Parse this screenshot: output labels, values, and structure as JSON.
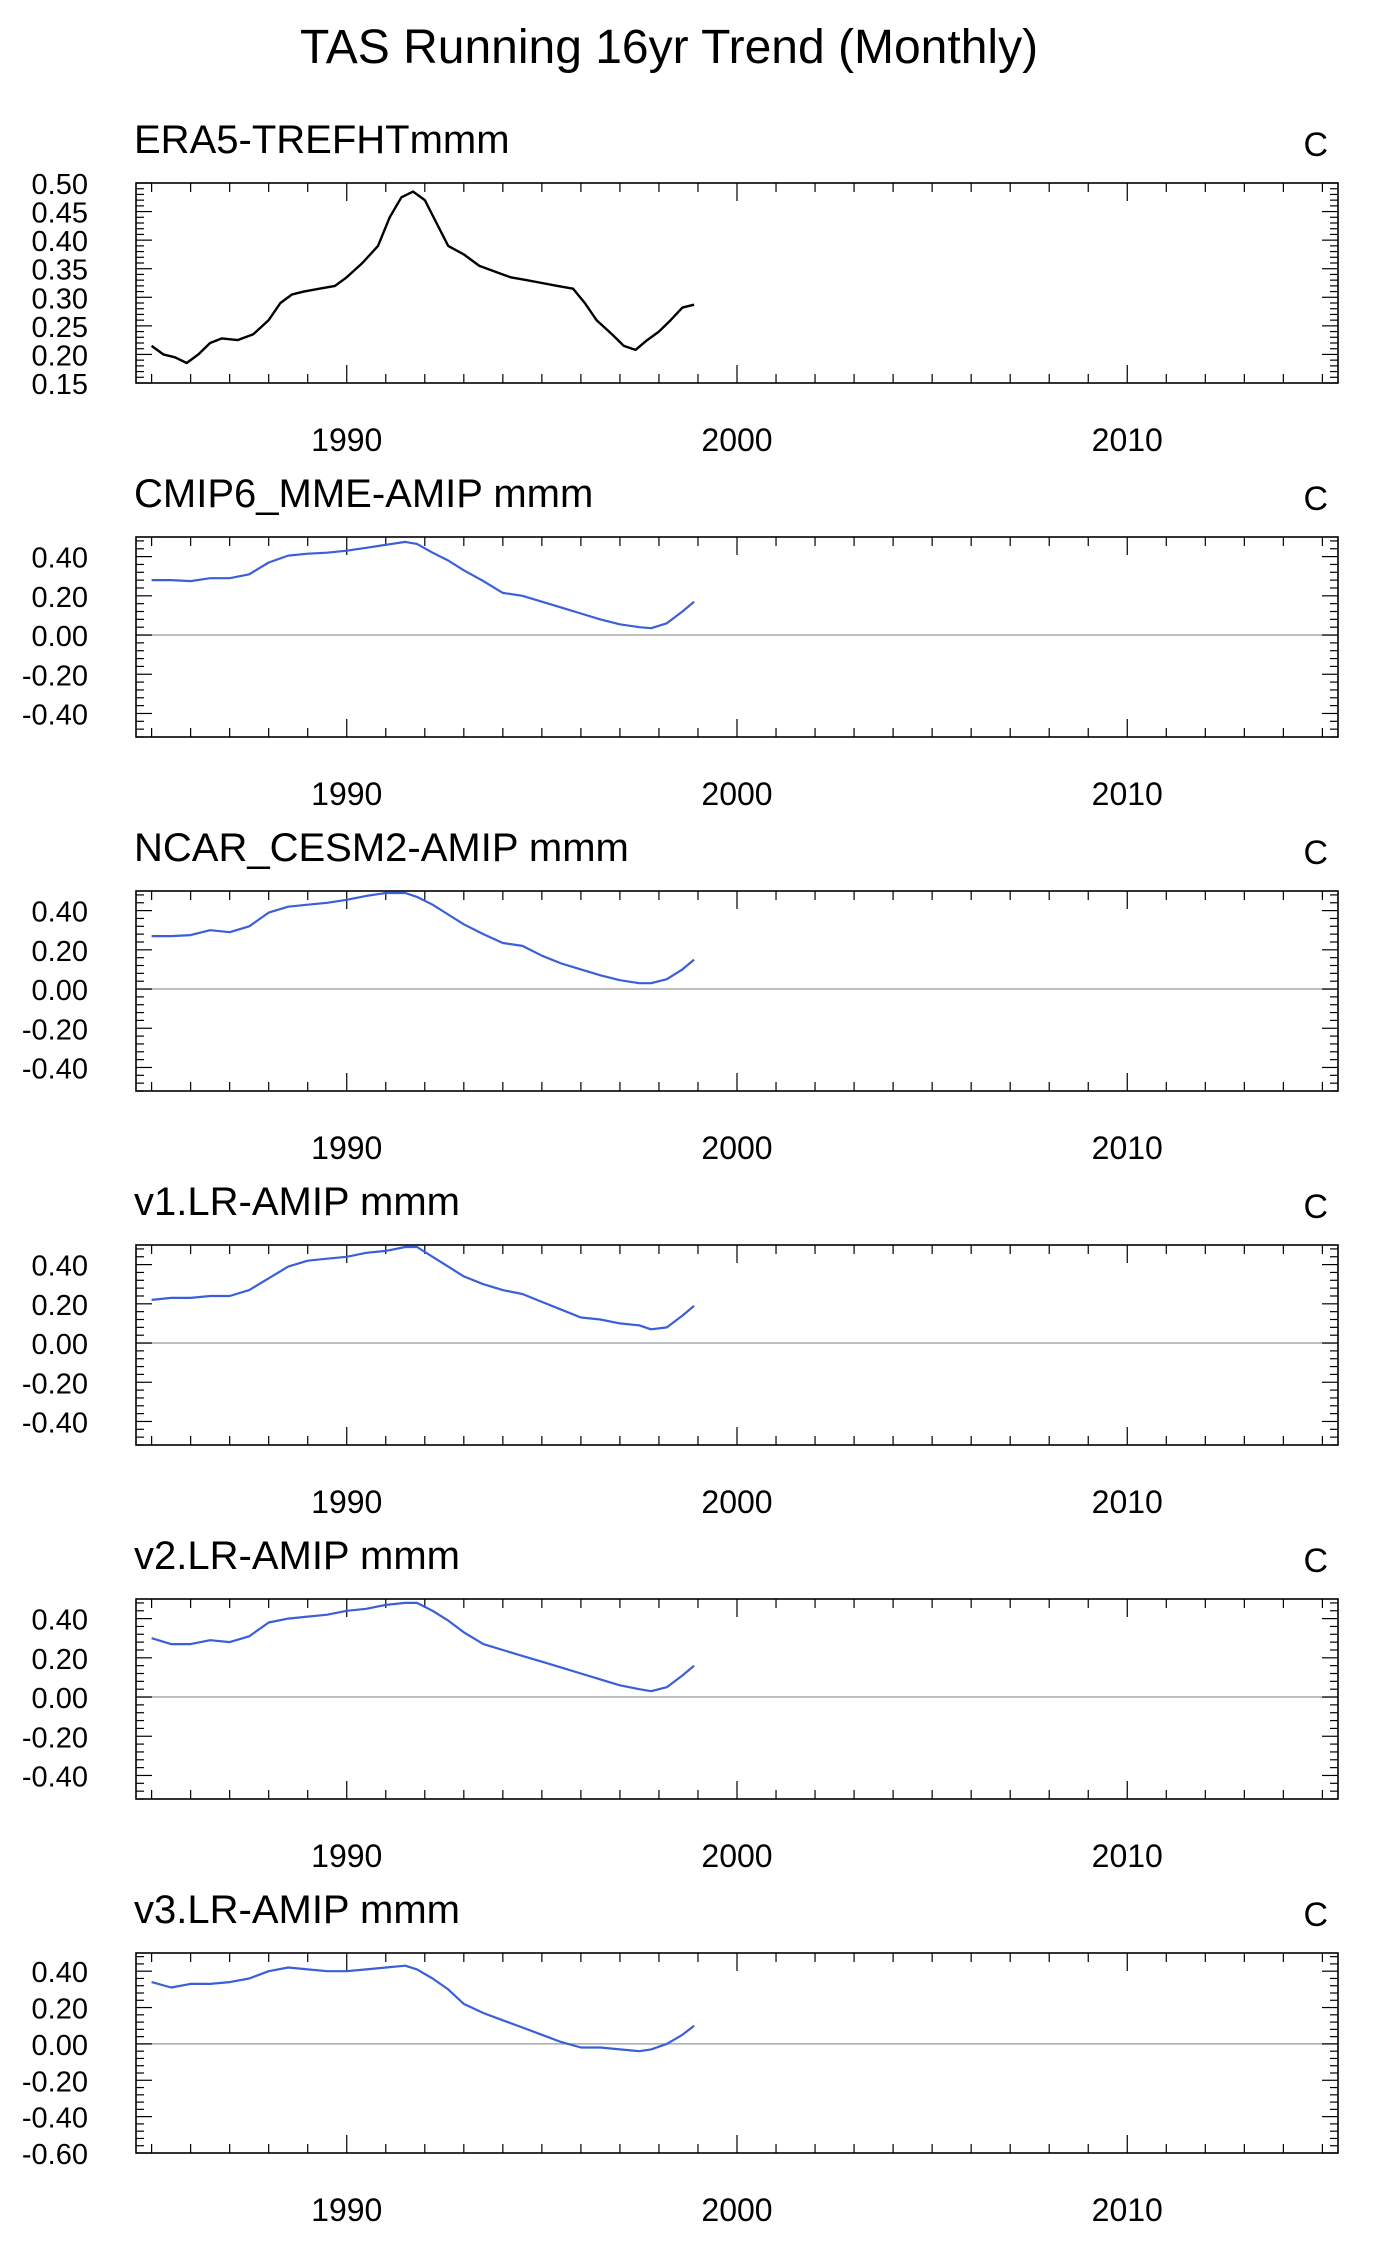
{
  "figure_title": "TAS Running 16yr Trend (Monthly)",
  "colors": {
    "obs_line": "#000000",
    "model_line": "#3a5fd9",
    "zero_line": "#aaaaaa",
    "frame": "#000000"
  },
  "chart_data": [
    {
      "type": "line",
      "title": "ERA5-TREFHTmmm",
      "units": "C",
      "xlim": [
        1984.6,
        2015.4
      ],
      "ylim": [
        0.15,
        0.5
      ],
      "x_ticks": [
        1990,
        2000,
        2010
      ],
      "y_ticks": [
        0.15,
        0.2,
        0.25,
        0.3,
        0.35,
        0.4,
        0.45,
        0.5
      ],
      "y_tick_labels": [
        "0.15",
        "0.20",
        "0.25",
        "0.30",
        "0.35",
        "0.40",
        "0.45",
        "0.50"
      ],
      "zero_line": false,
      "line_color": "obs",
      "series": [
        {
          "x": [
            1985.0,
            1985.3,
            1985.6,
            1985.9,
            1986.2,
            1986.5,
            1986.8,
            1987.2,
            1987.6,
            1988.0,
            1988.3,
            1988.6,
            1988.9,
            1989.3,
            1989.7,
            1990.0,
            1990.4,
            1990.8,
            1991.1,
            1991.4,
            1991.7,
            1992.0,
            1992.3,
            1992.6,
            1993.0,
            1993.4,
            1993.8,
            1994.2,
            1994.6,
            1995.0,
            1995.4,
            1995.8,
            1996.1,
            1996.4,
            1996.8,
            1997.1,
            1997.4,
            1997.7,
            1998.0,
            1998.3,
            1998.6,
            1998.9
          ],
          "values": [
            0.215,
            0.2,
            0.195,
            0.185,
            0.2,
            0.22,
            0.228,
            0.225,
            0.235,
            0.26,
            0.29,
            0.305,
            0.31,
            0.315,
            0.32,
            0.335,
            0.36,
            0.39,
            0.44,
            0.475,
            0.485,
            0.47,
            0.43,
            0.39,
            0.375,
            0.355,
            0.345,
            0.335,
            0.33,
            0.325,
            0.32,
            0.315,
            0.29,
            0.26,
            0.235,
            0.215,
            0.208,
            0.225,
            0.24,
            0.26,
            0.282,
            0.287
          ]
        }
      ]
    },
    {
      "type": "line",
      "title": "CMIP6_MME-AMIP  mmm",
      "units": "C",
      "xlim": [
        1984.6,
        2015.4
      ],
      "ylim": [
        -0.52,
        0.5
      ],
      "x_ticks": [
        1990,
        2000,
        2010
      ],
      "y_ticks": [
        -0.4,
        -0.2,
        0.0,
        0.2,
        0.4
      ],
      "y_tick_labels": [
        "-0.40",
        "-0.20",
        "0.00",
        "0.20",
        "0.40"
      ],
      "zero_line": true,
      "line_color": "model",
      "series": [
        {
          "x": [
            1985.0,
            1985.5,
            1986.0,
            1986.5,
            1987.0,
            1987.5,
            1988.0,
            1988.5,
            1989.0,
            1989.5,
            1990.0,
            1990.5,
            1991.0,
            1991.5,
            1991.8,
            1992.2,
            1992.6,
            1993.0,
            1993.5,
            1994.0,
            1994.5,
            1995.0,
            1995.5,
            1996.0,
            1996.5,
            1997.0,
            1997.5,
            1997.8,
            1998.2,
            1998.6,
            1998.9
          ],
          "values": [
            0.28,
            0.28,
            0.275,
            0.29,
            0.29,
            0.31,
            0.37,
            0.405,
            0.415,
            0.42,
            0.43,
            0.445,
            0.46,
            0.475,
            0.465,
            0.42,
            0.38,
            0.33,
            0.275,
            0.215,
            0.2,
            0.17,
            0.14,
            0.11,
            0.08,
            0.055,
            0.04,
            0.035,
            0.06,
            0.12,
            0.17
          ]
        }
      ]
    },
    {
      "type": "line",
      "title": "NCAR_CESM2-AMIP  mmm",
      "units": "C",
      "xlim": [
        1984.6,
        2015.4
      ],
      "ylim": [
        -0.52,
        0.5
      ],
      "x_ticks": [
        1990,
        2000,
        2010
      ],
      "y_ticks": [
        -0.4,
        -0.2,
        0.0,
        0.2,
        0.4
      ],
      "y_tick_labels": [
        "-0.40",
        "-0.20",
        "0.00",
        "0.20",
        "0.40"
      ],
      "zero_line": true,
      "line_color": "model",
      "series": [
        {
          "x": [
            1985.0,
            1985.5,
            1986.0,
            1986.5,
            1987.0,
            1987.5,
            1988.0,
            1988.5,
            1989.0,
            1989.5,
            1990.0,
            1990.5,
            1991.0,
            1991.5,
            1991.8,
            1992.2,
            1992.6,
            1993.0,
            1993.5,
            1994.0,
            1994.5,
            1995.0,
            1995.5,
            1996.0,
            1996.5,
            1997.0,
            1997.5,
            1997.8,
            1998.2,
            1998.6,
            1998.9
          ],
          "values": [
            0.27,
            0.27,
            0.275,
            0.3,
            0.29,
            0.32,
            0.39,
            0.42,
            0.43,
            0.44,
            0.455,
            0.475,
            0.49,
            0.49,
            0.47,
            0.43,
            0.38,
            0.33,
            0.28,
            0.235,
            0.22,
            0.17,
            0.13,
            0.1,
            0.07,
            0.045,
            0.03,
            0.03,
            0.05,
            0.1,
            0.15
          ]
        }
      ]
    },
    {
      "type": "line",
      "title": "v1.LR-AMIP  mmm",
      "units": "C",
      "xlim": [
        1984.6,
        2015.4
      ],
      "ylim": [
        -0.52,
        0.5
      ],
      "x_ticks": [
        1990,
        2000,
        2010
      ],
      "y_ticks": [
        -0.4,
        -0.2,
        0.0,
        0.2,
        0.4
      ],
      "y_tick_labels": [
        "-0.40",
        "-0.20",
        "0.00",
        "0.20",
        "0.40"
      ],
      "zero_line": true,
      "line_color": "model",
      "series": [
        {
          "x": [
            1985.0,
            1985.5,
            1986.0,
            1986.5,
            1987.0,
            1987.5,
            1988.0,
            1988.5,
            1989.0,
            1989.5,
            1990.0,
            1990.5,
            1991.0,
            1991.5,
            1991.8,
            1992.2,
            1992.6,
            1993.0,
            1993.5,
            1994.0,
            1994.5,
            1995.0,
            1995.5,
            1996.0,
            1996.5,
            1997.0,
            1997.5,
            1997.8,
            1998.2,
            1998.6,
            1998.9
          ],
          "values": [
            0.22,
            0.23,
            0.23,
            0.24,
            0.24,
            0.27,
            0.33,
            0.39,
            0.42,
            0.43,
            0.44,
            0.46,
            0.47,
            0.49,
            0.49,
            0.44,
            0.39,
            0.34,
            0.3,
            0.27,
            0.25,
            0.21,
            0.17,
            0.13,
            0.12,
            0.1,
            0.09,
            0.07,
            0.08,
            0.14,
            0.19
          ]
        }
      ]
    },
    {
      "type": "line",
      "title": "v2.LR-AMIP  mmm",
      "units": "C",
      "xlim": [
        1984.6,
        2015.4
      ],
      "ylim": [
        -0.52,
        0.5
      ],
      "x_ticks": [
        1990,
        2000,
        2010
      ],
      "y_ticks": [
        -0.4,
        -0.2,
        0.0,
        0.2,
        0.4
      ],
      "y_tick_labels": [
        "-0.40",
        "-0.20",
        "0.00",
        "0.20",
        "0.40"
      ],
      "zero_line": true,
      "line_color": "model",
      "series": [
        {
          "x": [
            1985.0,
            1985.5,
            1986.0,
            1986.5,
            1987.0,
            1987.5,
            1988.0,
            1988.5,
            1989.0,
            1989.5,
            1990.0,
            1990.5,
            1991.0,
            1991.5,
            1991.8,
            1992.2,
            1992.6,
            1993.0,
            1993.5,
            1994.0,
            1994.5,
            1995.0,
            1995.5,
            1996.0,
            1996.5,
            1997.0,
            1997.5,
            1997.8,
            1998.2,
            1998.6,
            1998.9
          ],
          "values": [
            0.3,
            0.27,
            0.27,
            0.29,
            0.28,
            0.31,
            0.38,
            0.4,
            0.41,
            0.42,
            0.44,
            0.45,
            0.47,
            0.48,
            0.48,
            0.44,
            0.39,
            0.33,
            0.27,
            0.24,
            0.21,
            0.18,
            0.15,
            0.12,
            0.09,
            0.06,
            0.04,
            0.03,
            0.05,
            0.11,
            0.16
          ]
        }
      ]
    },
    {
      "type": "line",
      "title": "v3.LR-AMIP  mmm",
      "units": "C",
      "xlim": [
        1984.6,
        2015.4
      ],
      "ylim": [
        -0.6,
        0.5
      ],
      "x_ticks": [
        1990,
        2000,
        2010
      ],
      "y_ticks": [
        -0.6,
        -0.4,
        -0.2,
        0.0,
        0.2,
        0.4
      ],
      "y_tick_labels": [
        "-0.60",
        "-0.40",
        "-0.20",
        "0.00",
        "0.20",
        "0.40"
      ],
      "zero_line": true,
      "line_color": "model",
      "series": [
        {
          "x": [
            1985.0,
            1985.5,
            1986.0,
            1986.5,
            1987.0,
            1987.5,
            1988.0,
            1988.5,
            1989.0,
            1989.5,
            1990.0,
            1990.5,
            1991.0,
            1991.5,
            1991.8,
            1992.2,
            1992.6,
            1993.0,
            1993.5,
            1994.0,
            1994.5,
            1995.0,
            1995.5,
            1996.0,
            1996.5,
            1997.0,
            1997.5,
            1997.8,
            1998.2,
            1998.6,
            1998.9
          ],
          "values": [
            0.34,
            0.31,
            0.33,
            0.33,
            0.34,
            0.36,
            0.4,
            0.42,
            0.41,
            0.4,
            0.4,
            0.41,
            0.42,
            0.43,
            0.41,
            0.36,
            0.3,
            0.22,
            0.17,
            0.13,
            0.09,
            0.05,
            0.01,
            -0.02,
            -0.02,
            -0.03,
            -0.04,
            -0.03,
            0.0,
            0.05,
            0.1
          ]
        }
      ]
    }
  ]
}
